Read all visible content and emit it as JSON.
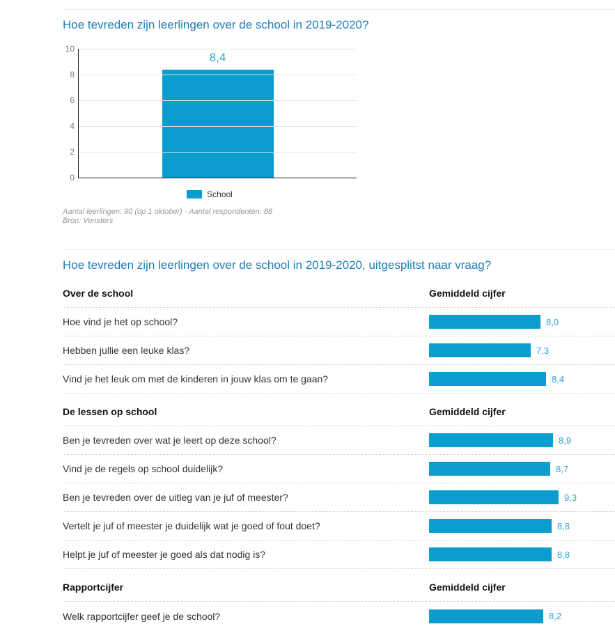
{
  "colors": {
    "accent": "#0b9dce",
    "title": "#1e7cb8",
    "value_label": "#2fa2d4"
  },
  "section1": {
    "title": "Hoe tevreden zijn leerlingen over de school in 2019-2020?",
    "footnote_line1": "Aantal leerlingen: 90 (op 1 oktober) - Aantal respondenten: 88",
    "footnote_line2": "Bron: Vensters"
  },
  "chart_data": {
    "type": "bar",
    "title": "Hoe tevreden zijn leerlingen over de school in 2019-2020?",
    "categories": [
      "School"
    ],
    "values": [
      8.4
    ],
    "value_labels": [
      "8,4"
    ],
    "xlabel": "",
    "ylabel": "",
    "ylim": [
      0,
      10
    ],
    "yticks": [
      0,
      2,
      4,
      6,
      8,
      10
    ],
    "grid": true,
    "legend_position": "bottom",
    "legend": [
      {
        "label": "School",
        "color": "#0b9dce"
      }
    ]
  },
  "section2": {
    "title": "Hoe tevreden zijn leerlingen over de school in 2019-2020, uitgesplitst naar vraag?",
    "value_header": "Gemiddeld cijfer",
    "max_value": 10,
    "groups": [
      {
        "header": "Over de school",
        "rows": [
          {
            "question": "Hoe vind je het op school?",
            "value": 8.0,
            "label": "8,0"
          },
          {
            "question": "Hebben jullie een leuke klas?",
            "value": 7.3,
            "label": "7,3"
          },
          {
            "question": "Vind je het leuk om met de kinderen in jouw klas om te gaan?",
            "value": 8.4,
            "label": "8,4"
          }
        ]
      },
      {
        "header": "De lessen op school",
        "rows": [
          {
            "question": "Ben je tevreden over wat je leert op deze school?",
            "value": 8.9,
            "label": "8,9"
          },
          {
            "question": "Vind je de regels op school duidelijk?",
            "value": 8.7,
            "label": "8,7"
          },
          {
            "question": "Ben je tevreden over de uitleg van je juf of meester?",
            "value": 9.3,
            "label": "9,3"
          },
          {
            "question": "Vertelt je juf of meester je duidelijk wat je goed of fout doet?",
            "value": 8.8,
            "label": "8,8"
          },
          {
            "question": "Helpt je juf of meester je goed als dat nodig is?",
            "value": 8.8,
            "label": "8,8"
          }
        ]
      },
      {
        "header": "Rapportcijfer",
        "rows": [
          {
            "question": "Welk rapportcijfer geef je de school?",
            "value": 8.2,
            "label": "8,2"
          }
        ]
      }
    ]
  }
}
